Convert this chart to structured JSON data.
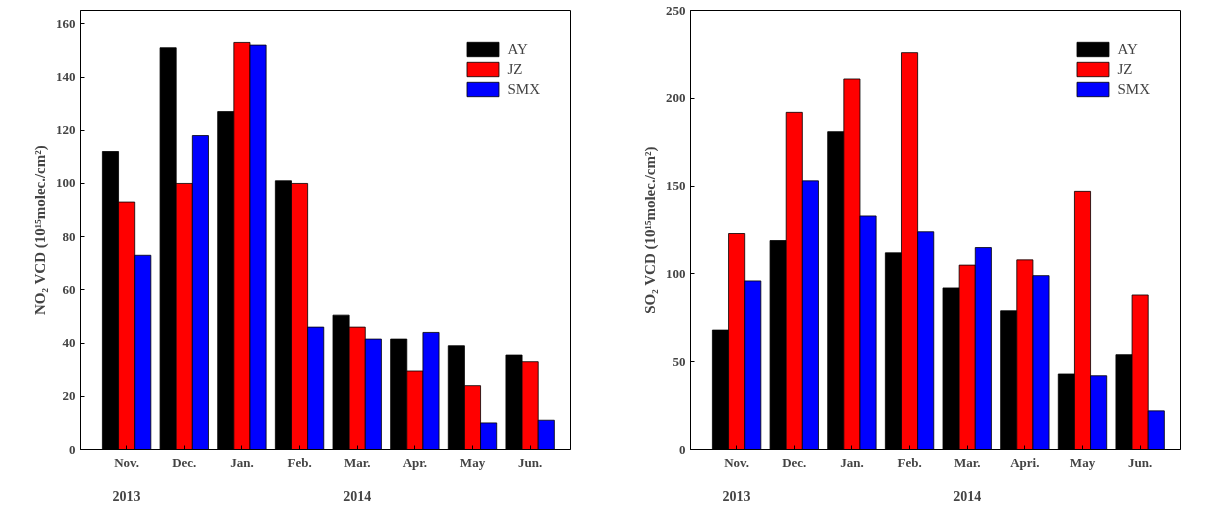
{
  "chart_data": [
    {
      "type": "bar",
      "categories": [
        "Nov.",
        "Dec.",
        "Jan.",
        "Feb.",
        "Mar.",
        "Apr.",
        "May",
        "Jun."
      ],
      "ylabel": "NO₂ VCD (10¹⁵molec./cm²)",
      "ylim": [
        0,
        165
      ],
      "yticks": [
        0,
        20,
        40,
        60,
        80,
        100,
        120,
        140,
        160
      ],
      "legend": "top right",
      "grid": false,
      "annotations": [
        "2013",
        "2014"
      ],
      "series": [
        {
          "name": "AY",
          "color": "#000000",
          "values": [
            112,
            151,
            127,
            101,
            50.5,
            41.5,
            39,
            35.5
          ]
        },
        {
          "name": "JZ",
          "color": "#ff0000",
          "values": [
            93,
            100,
            153,
            100,
            46,
            29.5,
            24,
            33
          ]
        },
        {
          "name": "SMX",
          "color": "#0000ff",
          "values": [
            73,
            118,
            152,
            46,
            41.5,
            44,
            10,
            11
          ]
        }
      ]
    },
    {
      "type": "bar",
      "categories": [
        "Nov.",
        "Dec.",
        "Jan.",
        "Feb.",
        "Mar.",
        "Apri.",
        "May",
        "Jun."
      ],
      "ylabel": "SO₂ VCD (10¹⁵molec./cm²)",
      "ylim": [
        0,
        250
      ],
      "yticks": [
        0,
        50,
        100,
        150,
        200,
        250
      ],
      "legend": "top right",
      "grid": false,
      "annotations": [
        "2013",
        "2014"
      ],
      "series": [
        {
          "name": "AY",
          "color": "#000000",
          "values": [
            68,
            119,
            181,
            112,
            92,
            79,
            43,
            54
          ]
        },
        {
          "name": "JZ",
          "color": "#ff0000",
          "values": [
            123,
            192,
            211,
            226,
            105,
            108,
            147,
            88
          ]
        },
        {
          "name": "SMX",
          "color": "#0000ff",
          "values": [
            96,
            153,
            133,
            124,
            115,
            99,
            42,
            22
          ]
        }
      ]
    }
  ]
}
